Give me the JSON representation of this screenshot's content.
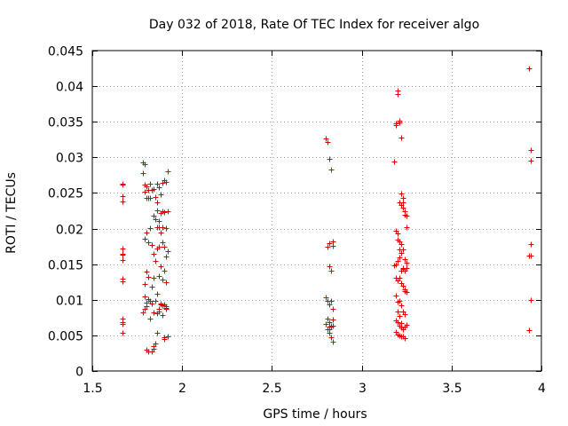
{
  "chart_data": {
    "type": "scatter",
    "title": "Day 032 of 2018, Rate Of TEC Index for receiver algo",
    "xlabel": "GPS time / hours",
    "ylabel": "ROTI / TECUs",
    "xlim": [
      1.5,
      4
    ],
    "ylim": [
      0,
      0.045
    ],
    "xticks": [
      1.5,
      2,
      2.5,
      3,
      3.5,
      4
    ],
    "xtick_labels": [
      "1.5",
      "2",
      "2.5",
      "3",
      "3.5",
      "4"
    ],
    "yticks": [
      0,
      0.005,
      0.01,
      0.015,
      0.02,
      0.025,
      0.03,
      0.035,
      0.04,
      0.045
    ],
    "ytick_labels": [
      "0",
      "0.005",
      "0.01",
      "0.015",
      "0.02",
      "0.025",
      "0.03",
      "0.035",
      "0.04",
      "0.045"
    ],
    "grid": true,
    "marker": "+",
    "marker_color": "#e00000",
    "series": [
      {
        "name": "ROTI",
        "x": [
          1.67,
          1.67,
          1.67,
          1.67,
          1.67,
          1.67,
          1.67,
          1.67,
          1.67,
          1.67,
          1.67,
          1.67,
          1.67,
          1.67,
          1.67,
          1.78,
          1.78,
          1.79,
          1.79,
          1.79,
          1.79,
          1.79,
          1.8,
          1.8,
          1.8,
          1.8,
          1.8,
          1.8,
          1.81,
          1.81,
          1.81,
          1.81,
          1.81,
          1.82,
          1.82,
          1.82,
          1.82,
          1.83,
          1.83,
          1.83,
          1.83,
          1.84,
          1.84,
          1.84,
          1.84,
          1.84,
          1.85,
          1.85,
          1.85,
          1.85,
          1.85,
          1.86,
          1.86,
          1.86,
          1.86,
          1.86,
          1.86,
          1.86,
          1.87,
          1.87,
          1.87,
          1.87,
          1.87,
          1.88,
          1.88,
          1.88,
          1.88,
          1.88,
          1.89,
          1.89,
          1.89,
          1.89,
          1.89,
          1.89,
          1.9,
          1.9,
          1.9,
          1.9,
          1.9,
          1.9,
          1.91,
          1.91,
          1.91,
          1.91,
          1.91,
          1.92,
          1.92,
          1.92,
          1.92,
          1.78,
          1.79,
          1.8,
          1.82,
          1.83,
          1.84,
          1.86,
          1.87,
          1.88,
          1.9,
          1.91,
          1.79,
          1.81,
          1.84,
          1.87,
          1.89,
          1.91,
          2.8,
          2.81,
          2.82,
          2.82,
          2.83,
          2.84,
          2.81,
          2.82,
          2.83,
          2.84,
          2.8,
          2.81,
          2.82,
          2.83,
          2.84,
          2.81,
          2.82,
          2.83,
          2.84,
          2.8,
          2.81,
          2.82,
          2.83,
          2.84,
          2.82,
          2.83,
          2.84,
          2.82,
          3.18,
          3.19,
          3.19,
          3.2,
          3.2,
          3.21,
          3.21,
          3.22,
          3.22,
          3.23,
          3.23,
          3.24,
          3.24,
          3.25,
          3.25,
          3.19,
          3.2,
          3.21,
          3.22,
          3.23,
          3.24,
          3.25,
          3.18,
          3.19,
          3.2,
          3.21,
          3.22,
          3.23,
          3.24,
          3.25,
          3.19,
          3.2,
          3.21,
          3.22,
          3.23,
          3.24,
          3.25,
          3.19,
          3.2,
          3.21,
          3.22,
          3.23,
          3.24,
          3.19,
          3.2,
          3.21,
          3.22,
          3.23,
          3.24,
          3.25,
          3.19,
          3.2,
          3.21,
          3.22,
          3.23,
          3.24,
          3.21,
          3.22,
          3.23,
          3.2,
          3.21,
          3.22,
          3.23,
          3.24,
          3.2,
          3.21,
          3.22,
          3.93,
          3.94,
          3.94,
          3.94,
          3.93,
          3.94,
          3.94,
          3.93
        ],
        "y": [
          0.0263,
          0.0262,
          0.0246,
          0.0238,
          0.0172,
          0.0164,
          0.0156,
          0.0163,
          0.013,
          0.0126,
          0.0073,
          0.0068,
          0.0066,
          0.0066,
          0.0053,
          0.0293,
          0.0278,
          0.0291,
          0.0262,
          0.0186,
          0.0122,
          0.0087,
          0.0259,
          0.0243,
          0.0195,
          0.0139,
          0.0096,
          0.003,
          0.0254,
          0.0243,
          0.0181,
          0.0132,
          0.0101,
          0.0263,
          0.0243,
          0.0201,
          0.0098,
          0.0254,
          0.0177,
          0.0095,
          0.0028,
          0.0256,
          0.0218,
          0.0165,
          0.0131,
          0.0082,
          0.0244,
          0.0213,
          0.0154,
          0.0098,
          0.0039,
          0.0263,
          0.0237,
          0.0226,
          0.0202,
          0.0172,
          0.0108,
          0.0081,
          0.0258,
          0.0211,
          0.0174,
          0.0134,
          0.0087,
          0.0248,
          0.0222,
          0.0194,
          0.0147,
          0.0095,
          0.0264,
          0.0225,
          0.0202,
          0.0181,
          0.0128,
          0.0078,
          0.0268,
          0.0223,
          0.0175,
          0.0141,
          0.0093,
          0.0047,
          0.0266,
          0.0201,
          0.0161,
          0.0125,
          0.0091,
          0.0281,
          0.0224,
          0.0168,
          0.0048,
          0.0082,
          0.0105,
          0.0091,
          0.0074,
          0.0118,
          0.0031,
          0.0054,
          0.0202,
          0.0093,
          0.0045,
          0.0087,
          0.0252,
          0.0028,
          0.0035,
          0.0084,
          0.0092,
          0.0089,
          0.0327,
          0.0322,
          0.0298,
          0.0179,
          0.0283,
          0.0182,
          0.0174,
          0.0147,
          0.0141,
          0.0176,
          0.0104,
          0.0098,
          0.0093,
          0.0099,
          0.0087,
          0.0073,
          0.0069,
          0.0062,
          0.0072,
          0.0066,
          0.0058,
          0.0062,
          0.0064,
          0.0063,
          0.0053,
          0.0047,
          0.0041,
          0.0059,
          0.0294,
          0.0345,
          0.0348,
          0.0394,
          0.0389,
          0.0349,
          0.0352,
          0.0328,
          0.0249,
          0.0243,
          0.0237,
          0.0224,
          0.0219,
          0.0218,
          0.0202,
          0.0197,
          0.0184,
          0.0182,
          0.0178,
          0.0171,
          0.0157,
          0.0152,
          0.0148,
          0.0149,
          0.0155,
          0.016,
          0.0141,
          0.0144,
          0.0141,
          0.0145,
          0.0131,
          0.0127,
          0.0131,
          0.0124,
          0.012,
          0.0115,
          0.0111,
          0.0106,
          0.0097,
          0.0099,
          0.0092,
          0.0084,
          0.008,
          0.0071,
          0.0068,
          0.0063,
          0.0061,
          0.0058,
          0.0062,
          0.0065,
          0.0055,
          0.0051,
          0.005,
          0.0049,
          0.0048,
          0.0046,
          0.0237,
          0.0233,
          0.0229,
          0.0193,
          0.0171,
          0.0166,
          0.0143,
          0.0112,
          0.0084,
          0.0077,
          0.0067,
          0.0425,
          0.0311,
          0.0295,
          0.0178,
          0.0162,
          0.0162,
          0.01,
          0.0057
        ]
      }
    ]
  }
}
